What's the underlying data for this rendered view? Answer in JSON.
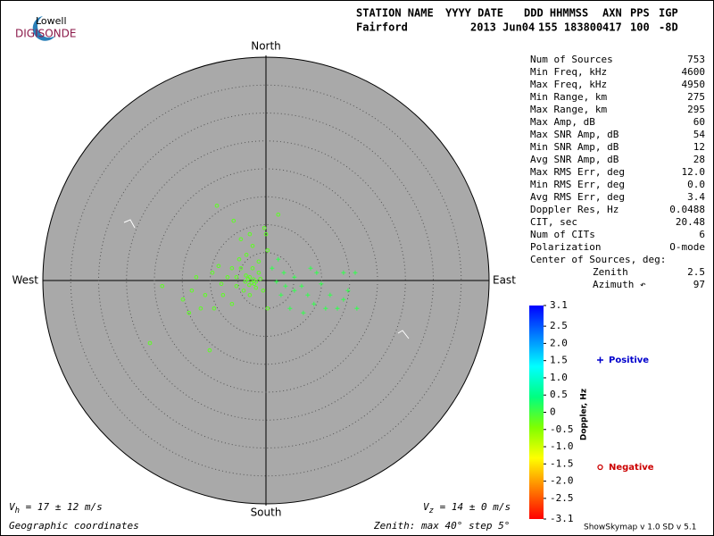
{
  "logo": {
    "top": "Lowell",
    "bottom": "DIGISONDE"
  },
  "header": {
    "labels": [
      "STATION NAME",
      "YYYY DATE",
      "DDD HHMMSS",
      "AXN",
      "PPS",
      "IGP"
    ],
    "values": [
      "Fairford",
      "2013 Jun04",
      "155 183800",
      "417",
      "100",
      "-8D"
    ]
  },
  "stats": [
    [
      "Num of Sources",
      "753"
    ],
    [
      "Min Freq, kHz",
      "4600"
    ],
    [
      "Max Freq, kHz",
      "4950"
    ],
    [
      "Min Range, km",
      "275"
    ],
    [
      "Max Range, km",
      "295"
    ],
    [
      "Max Amp, dB",
      "60"
    ],
    [
      "Max SNR Amp, dB",
      "54"
    ],
    [
      "Min SNR Amp, dB",
      "12"
    ],
    [
      "Avg SNR Amp, dB",
      "28"
    ],
    [
      "Max RMS Err, deg",
      "12.0"
    ],
    [
      "Min RMS Err, deg",
      "0.0"
    ],
    [
      "Avg RMS Err, deg",
      "3.4"
    ],
    [
      "Doppler Res, Hz",
      "0.0488"
    ],
    [
      "CIT, sec",
      "20.48"
    ],
    [
      "Num of CITs",
      "6"
    ],
    [
      "Polarization",
      "O-mode"
    ]
  ],
  "center": {
    "title": "Center of Sources, deg:",
    "rows": [
      [
        "Zenith",
        "2.5"
      ],
      [
        "Azimuth ↶",
        "97"
      ]
    ]
  },
  "chart_data": {
    "type": "skymap",
    "directions": {
      "north": "North",
      "south": "South",
      "east": "East",
      "west": "West"
    },
    "rlim": [
      0,
      40
    ],
    "rticks": [
      5,
      10,
      15,
      20,
      25,
      30,
      35,
      40
    ],
    "colorbar": {
      "title": "Doppler, Hz",
      "lim": [
        -3.1,
        3.1
      ],
      "colors": [
        "#ff0000",
        "#ff8000",
        "#ffff00",
        "#80ff00",
        "#00ff80",
        "#00ffff",
        "#0080ff",
        "#0000ff"
      ],
      "ticks": [
        3.1,
        2.5,
        {
          "value": 2.0,
          "label": "2.0"
        },
        1.5,
        {
          "value": 1.0,
          "label": "1.0"
        },
        0.5,
        0,
        -0.5,
        {
          "value": -1.0,
          "label": "-1.0"
        },
        -1.5,
        {
          "value": -2.0,
          "label": "-2.0"
        },
        -2.5,
        -3.1
      ]
    },
    "series": [
      {
        "name": "Positive",
        "marker": "+",
        "color": "#0000cc",
        "x": [
          1.9,
          3.5,
          5.1,
          6.4,
          7.5,
          8.6,
          9.9,
          11.5,
          13.9,
          14.7,
          16.0,
          16.3,
          12.8,
          10.7,
          4.3,
          6.7,
          2.7,
          5.1,
          9.1,
          8.0,
          3.2,
          1.1,
          2.2,
          13.9
        ],
        "y": [
          -0.2,
          -1.0,
          -1.8,
          -1.0,
          -2.6,
          -4.2,
          -0.6,
          -2.6,
          1.4,
          -1.8,
          1.4,
          -5.0,
          -5.0,
          -5.0,
          -5.0,
          -5.8,
          -2.6,
          0.6,
          1.4,
          2.2,
          1.4,
          2.2,
          3.8,
          -3.4
        ],
        "doppler": [
          0.1,
          0.1,
          0.1,
          0.1,
          0.1,
          0.1,
          0.1,
          0.1,
          0.1,
          0.1,
          0.1,
          0.1,
          0.1,
          0.1,
          0.1,
          0.1,
          0.1,
          0.1,
          0.1,
          0.1,
          0.1,
          0.1,
          0.1,
          0.1
        ]
      },
      {
        "name": "Negative",
        "marker": "o",
        "color": "#cc0000",
        "x": [
          -8.8,
          -5.8,
          2.2,
          0.0,
          -4.5,
          -2.4,
          -3.5,
          -1.3,
          -6.1,
          -8.5,
          -9.6,
          -12.5,
          -13.3,
          -10.9,
          -13.8,
          -11.7,
          -7.7,
          -5.3,
          -3.7,
          -2.1,
          -2.9,
          -1.3,
          -4.5,
          -0.5,
          0.3,
          -6.1,
          -9.3,
          -18.6,
          -20.8,
          -10.1,
          -14.9,
          -2.9,
          -1.8,
          -4.0,
          -5.3,
          -1.0,
          -2.4,
          -6.9,
          -8.0,
          -4.8,
          0.3,
          -0.3,
          -2.9,
          -3.2,
          -2.6,
          -3.0,
          -2.2,
          -3.6,
          -1.8
        ],
        "y": [
          13.4,
          10.7,
          11.8,
          8.3,
          7.4,
          6.2,
          4.6,
          3.4,
          2.2,
          2.6,
          1.4,
          0.6,
          -1.8,
          -2.6,
          -5.8,
          -5.0,
          -2.6,
          -1.0,
          -0.2,
          -0.6,
          0.6,
          1.4,
          2.2,
          -1.8,
          -5.0,
          -4.2,
          -5.0,
          -1.0,
          -11.2,
          -12.5,
          -3.4,
          -2.6,
          -1.3,
          -1.8,
          0.6,
          0.3,
          2.2,
          0.6,
          -0.6,
          3.8,
          5.4,
          9.4,
          8.3,
          0.3,
          -0.4,
          -0.8,
          0.2,
          0.9,
          -0.2
        ],
        "doppler": [
          -0.2,
          -0.2,
          -0.2,
          -0.2,
          -0.2,
          -0.2,
          -0.2,
          -0.2,
          -0.2,
          -0.2,
          -0.2,
          -0.2,
          -0.2,
          -0.2,
          -0.2,
          -0.2,
          -0.2,
          -0.2,
          -0.2,
          -0.2,
          -0.2,
          -0.2,
          -0.2,
          -0.2,
          -0.2,
          -0.2,
          -0.2,
          -0.2,
          -0.2,
          -0.2,
          -0.2,
          -0.2,
          -0.2,
          -0.2,
          -0.2,
          -0.2,
          -0.2,
          -0.2,
          -0.2,
          -0.2,
          -0.2,
          -0.2,
          -0.2,
          -0.2,
          -0.2,
          -0.2,
          -0.2,
          -0.2,
          -0.2
        ]
      }
    ]
  },
  "footer": {
    "vh": {
      "symbol": "V",
      "sub": "h",
      "text": " = 17 ± 12 m/s"
    },
    "vz": {
      "symbol": "V",
      "sub": "z",
      "text": " = 14 ± 0 m/s"
    },
    "coords": "Geographic coordinates",
    "zenith": "Zenith: max 40°  step 5°",
    "version": "ShowSkymap v 1.0   SD v 5.1"
  }
}
